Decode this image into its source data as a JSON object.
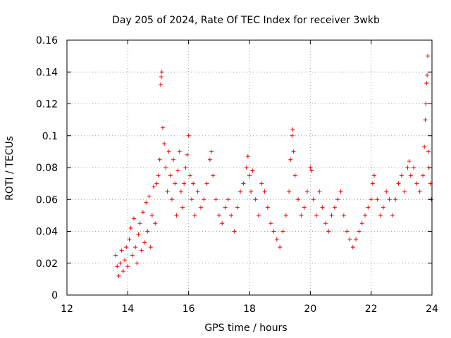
{
  "chart_data": {
    "type": "scatter",
    "title": "Day 205 of 2024, Rate Of TEC Index for receiver 3wkb",
    "xlabel": "GPS time / hours",
    "ylabel": "ROTI / TECUs",
    "xlim": [
      12,
      24
    ],
    "ylim": [
      0,
      0.16
    ],
    "xticks": [
      12,
      14,
      16,
      18,
      20,
      22,
      24
    ],
    "yticks": [
      0,
      0.02,
      0.04,
      0.06,
      0.08,
      0.1,
      0.12,
      0.14,
      0.16
    ],
    "xtick_labels": [
      "12",
      "14",
      "16",
      "18",
      "20",
      "22",
      "24"
    ],
    "ytick_labels": [
      "0",
      "0.02",
      "0.04",
      "0.06",
      "0.08",
      "0.1",
      "0.12",
      "0.14",
      "0.16"
    ],
    "grid": true,
    "marker": "+",
    "color": "#ff0000",
    "series": [
      {
        "name": "ROTI",
        "points": [
          [
            13.6,
            0.025
          ],
          [
            13.65,
            0.018
          ],
          [
            13.7,
            0.012
          ],
          [
            13.75,
            0.02
          ],
          [
            13.8,
            0.028
          ],
          [
            13.85,
            0.015
          ],
          [
            13.9,
            0.022
          ],
          [
            13.95,
            0.03
          ],
          [
            14.0,
            0.018
          ],
          [
            14.05,
            0.035
          ],
          [
            14.1,
            0.042
          ],
          [
            14.15,
            0.025
          ],
          [
            14.2,
            0.048
          ],
          [
            14.25,
            0.03
          ],
          [
            14.3,
            0.02
          ],
          [
            14.35,
            0.038
          ],
          [
            14.4,
            0.045
          ],
          [
            14.45,
            0.028
          ],
          [
            14.5,
            0.052
          ],
          [
            14.55,
            0.033
          ],
          [
            14.6,
            0.058
          ],
          [
            14.65,
            0.04
          ],
          [
            14.7,
            0.062
          ],
          [
            14.75,
            0.03
          ],
          [
            14.8,
            0.05
          ],
          [
            14.85,
            0.068
          ],
          [
            14.9,
            0.045
          ],
          [
            14.95,
            0.07
          ],
          [
            15.0,
            0.075
          ],
          [
            15.05,
            0.085
          ],
          [
            15.08,
            0.132
          ],
          [
            15.1,
            0.137
          ],
          [
            15.12,
            0.14
          ],
          [
            15.15,
            0.105
          ],
          [
            15.2,
            0.095
          ],
          [
            15.25,
            0.08
          ],
          [
            15.3,
            0.065
          ],
          [
            15.35,
            0.09
          ],
          [
            15.4,
            0.075
          ],
          [
            15.45,
            0.06
          ],
          [
            15.5,
            0.085
          ],
          [
            15.55,
            0.07
          ],
          [
            15.6,
            0.05
          ],
          [
            15.65,
            0.078
          ],
          [
            15.7,
            0.09
          ],
          [
            15.75,
            0.065
          ],
          [
            15.8,
            0.055
          ],
          [
            15.85,
            0.07
          ],
          [
            15.9,
            0.08
          ],
          [
            15.95,
            0.088
          ],
          [
            16.0,
            0.1
          ],
          [
            16.05,
            0.075
          ],
          [
            16.1,
            0.06
          ],
          [
            16.15,
            0.07
          ],
          [
            16.2,
            0.05
          ],
          [
            16.3,
            0.065
          ],
          [
            16.4,
            0.055
          ],
          [
            16.5,
            0.06
          ],
          [
            16.6,
            0.07
          ],
          [
            16.7,
            0.085
          ],
          [
            16.75,
            0.09
          ],
          [
            16.8,
            0.075
          ],
          [
            16.9,
            0.06
          ],
          [
            17.0,
            0.05
          ],
          [
            17.1,
            0.045
          ],
          [
            17.2,
            0.055
          ],
          [
            17.3,
            0.06
          ],
          [
            17.4,
            0.05
          ],
          [
            17.5,
            0.04
          ],
          [
            17.6,
            0.055
          ],
          [
            17.7,
            0.065
          ],
          [
            17.8,
            0.07
          ],
          [
            17.9,
            0.08
          ],
          [
            17.95,
            0.087
          ],
          [
            18.0,
            0.075
          ],
          [
            18.05,
            0.065
          ],
          [
            18.1,
            0.078
          ],
          [
            18.2,
            0.06
          ],
          [
            18.3,
            0.05
          ],
          [
            18.4,
            0.07
          ],
          [
            18.5,
            0.065
          ],
          [
            18.6,
            0.055
          ],
          [
            18.7,
            0.045
          ],
          [
            18.8,
            0.04
          ],
          [
            18.9,
            0.035
          ],
          [
            19.0,
            0.03
          ],
          [
            19.1,
            0.04
          ],
          [
            19.2,
            0.05
          ],
          [
            19.3,
            0.065
          ],
          [
            19.35,
            0.085
          ],
          [
            19.4,
            0.1
          ],
          [
            19.42,
            0.104
          ],
          [
            19.45,
            0.09
          ],
          [
            19.5,
            0.075
          ],
          [
            19.6,
            0.06
          ],
          [
            19.7,
            0.05
          ],
          [
            19.8,
            0.055
          ],
          [
            19.9,
            0.065
          ],
          [
            20.0,
            0.08
          ],
          [
            20.05,
            0.078
          ],
          [
            20.1,
            0.06
          ],
          [
            20.2,
            0.05
          ],
          [
            20.3,
            0.065
          ],
          [
            20.4,
            0.055
          ],
          [
            20.5,
            0.045
          ],
          [
            20.6,
            0.04
          ],
          [
            20.7,
            0.05
          ],
          [
            20.8,
            0.055
          ],
          [
            20.9,
            0.06
          ],
          [
            21.0,
            0.065
          ],
          [
            21.1,
            0.05
          ],
          [
            21.2,
            0.04
          ],
          [
            21.3,
            0.035
          ],
          [
            21.4,
            0.03
          ],
          [
            21.5,
            0.035
          ],
          [
            21.6,
            0.04
          ],
          [
            21.7,
            0.045
          ],
          [
            21.8,
            0.05
          ],
          [
            21.9,
            0.055
          ],
          [
            22.0,
            0.06
          ],
          [
            22.05,
            0.07
          ],
          [
            22.1,
            0.075
          ],
          [
            22.2,
            0.06
          ],
          [
            22.3,
            0.05
          ],
          [
            22.4,
            0.055
          ],
          [
            22.5,
            0.065
          ],
          [
            22.6,
            0.06
          ],
          [
            22.7,
            0.05
          ],
          [
            22.8,
            0.06
          ],
          [
            22.9,
            0.07
          ],
          [
            23.0,
            0.075
          ],
          [
            23.1,
            0.065
          ],
          [
            23.2,
            0.08
          ],
          [
            23.25,
            0.084
          ],
          [
            23.3,
            0.075
          ],
          [
            23.4,
            0.08
          ],
          [
            23.5,
            0.07
          ],
          [
            23.6,
            0.065
          ],
          [
            23.7,
            0.075
          ],
          [
            23.75,
            0.093
          ],
          [
            23.78,
            0.11
          ],
          [
            23.8,
            0.12
          ],
          [
            23.82,
            0.133
          ],
          [
            23.84,
            0.138
          ],
          [
            23.86,
            0.15
          ],
          [
            23.88,
            0.09
          ],
          [
            23.9,
            0.08
          ],
          [
            23.95,
            0.07
          ],
          [
            23.98,
            0.06
          ]
        ]
      }
    ]
  }
}
